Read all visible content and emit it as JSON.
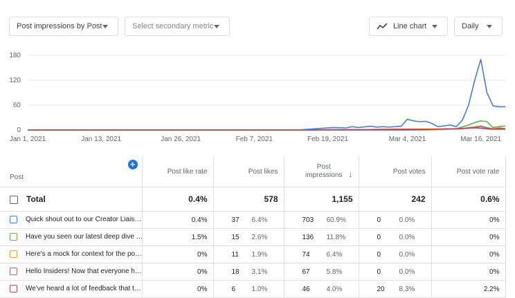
{
  "toolbar": {
    "primary_metric": "Post impressions by Post",
    "secondary_metric_placeholder": "Select secondary metric",
    "chart_type": "Line chart",
    "granularity": "Daily"
  },
  "colors": {
    "blue": "#4a7bd0",
    "green": "#6aa84f",
    "orange": "#d9a441",
    "purple": "#8e63b8",
    "red": "#b84a4a",
    "accent": "#1a73e8"
  },
  "chart_data": {
    "type": "line",
    "ylim": [
      0,
      180
    ],
    "yticks": [
      0,
      60,
      120,
      180
    ],
    "xtick_labels": [
      "Jan 1, 2021",
      "Jan 13, 2021",
      "Jan 26, 2021",
      "Feb 7, 2021",
      "Feb 19, 2021",
      "Mar 4, 2021",
      "Mar 16, 2021"
    ],
    "xtick_days": [
      0,
      12,
      25,
      37,
      49,
      62,
      74
    ],
    "x_range_days": [
      0,
      78
    ],
    "grid": true,
    "series": [
      {
        "color": "blue",
        "points": [
          [
            0,
            0
          ],
          [
            44,
            0
          ],
          [
            46,
            2
          ],
          [
            48,
            4
          ],
          [
            50,
            6
          ],
          [
            52,
            5
          ],
          [
            53,
            8
          ],
          [
            54,
            6
          ],
          [
            56,
            9
          ],
          [
            57,
            7
          ],
          [
            58,
            8
          ],
          [
            59,
            7
          ],
          [
            61,
            9
          ],
          [
            62,
            26
          ],
          [
            63,
            22
          ],
          [
            64,
            20
          ],
          [
            65,
            21
          ],
          [
            66,
            16
          ],
          [
            67,
            8
          ],
          [
            68,
            10
          ],
          [
            69,
            12
          ],
          [
            70,
            8
          ],
          [
            71,
            24
          ],
          [
            72,
            60
          ],
          [
            73,
            120
          ],
          [
            74,
            170
          ],
          [
            75,
            90
          ],
          [
            76,
            58
          ],
          [
            77,
            56
          ],
          [
            78,
            56
          ]
        ]
      },
      {
        "color": "green",
        "points": [
          [
            0,
            0
          ],
          [
            65,
            0
          ],
          [
            68,
            2
          ],
          [
            70,
            3
          ],
          [
            72,
            12
          ],
          [
            73,
            18
          ],
          [
            74,
            22
          ],
          [
            75,
            20
          ],
          [
            76,
            6
          ],
          [
            77,
            8
          ],
          [
            78,
            10
          ]
        ]
      },
      {
        "color": "orange",
        "points": [
          [
            0,
            0
          ],
          [
            66,
            0
          ],
          [
            69,
            2
          ],
          [
            71,
            3
          ],
          [
            72,
            6
          ],
          [
            73,
            8
          ],
          [
            74,
            10
          ],
          [
            75,
            6
          ],
          [
            76,
            3
          ],
          [
            77,
            5
          ],
          [
            78,
            4
          ]
        ]
      },
      {
        "color": "purple",
        "points": [
          [
            0,
            0
          ],
          [
            62,
            0
          ],
          [
            64,
            1
          ],
          [
            67,
            2
          ],
          [
            70,
            3
          ],
          [
            72,
            5
          ],
          [
            73,
            6
          ],
          [
            74,
            8
          ],
          [
            75,
            5
          ],
          [
            76,
            2
          ],
          [
            77,
            4
          ],
          [
            78,
            3
          ]
        ]
      },
      {
        "color": "red",
        "points": [
          [
            0,
            0
          ],
          [
            45,
            0
          ],
          [
            50,
            1
          ],
          [
            55,
            1
          ],
          [
            60,
            2
          ],
          [
            65,
            2
          ],
          [
            70,
            3
          ],
          [
            72,
            4
          ],
          [
            73,
            5
          ],
          [
            74,
            4
          ],
          [
            75,
            3
          ],
          [
            76,
            2
          ],
          [
            78,
            2
          ]
        ]
      }
    ]
  },
  "table": {
    "headers": {
      "post": "Post",
      "like_rate": "Post like rate",
      "likes": "Post likes",
      "impressions": "Post impressions",
      "votes": "Post votes",
      "vote_rate": "Post vote rate"
    },
    "sort_arrow": "↓",
    "total": {
      "label": "Total",
      "like_rate": "0.4%",
      "likes": "578",
      "impressions": "1,155",
      "votes": "242",
      "vote_rate": "0.6%"
    },
    "rows": [
      {
        "color": "blue",
        "post": "Quick shout out to our Creator Liais…",
        "like_rate": "0.4%",
        "likes": "37",
        "likes_pct": "6.4%",
        "impressions": "703",
        "impressions_pct": "60.9%",
        "votes": "0",
        "votes_pct": "0.0%",
        "vote_rate": "0%"
      },
      {
        "color": "green",
        "post": "Have you seen our latest deep dive …",
        "like_rate": "1.5%",
        "likes": "15",
        "likes_pct": "2.6%",
        "impressions": "136",
        "impressions_pct": "11.8%",
        "votes": "0",
        "votes_pct": "0.0%",
        "vote_rate": "0%"
      },
      {
        "color": "orange",
        "post": "Here's a mock for context for the po…",
        "like_rate": "0%",
        "likes": "11",
        "likes_pct": "1.9%",
        "impressions": "74",
        "impressions_pct": "6.4%",
        "votes": "0",
        "votes_pct": "0.0%",
        "vote_rate": "0%"
      },
      {
        "color": "purple",
        "post": "Hello Insiders! Now that everyone h…",
        "like_rate": "0%",
        "likes": "18",
        "likes_pct": "3.1%",
        "impressions": "67",
        "impressions_pct": "5.8%",
        "votes": "0",
        "votes_pct": "0.0%",
        "vote_rate": "0%"
      },
      {
        "color": "red",
        "post": "We've heard a lot of feedback that t…",
        "like_rate": "0%",
        "likes": "6",
        "likes_pct": "1.0%",
        "impressions": "46",
        "impressions_pct": "4.0%",
        "votes": "20",
        "votes_pct": "8.3%",
        "vote_rate": "2.2%"
      }
    ]
  }
}
